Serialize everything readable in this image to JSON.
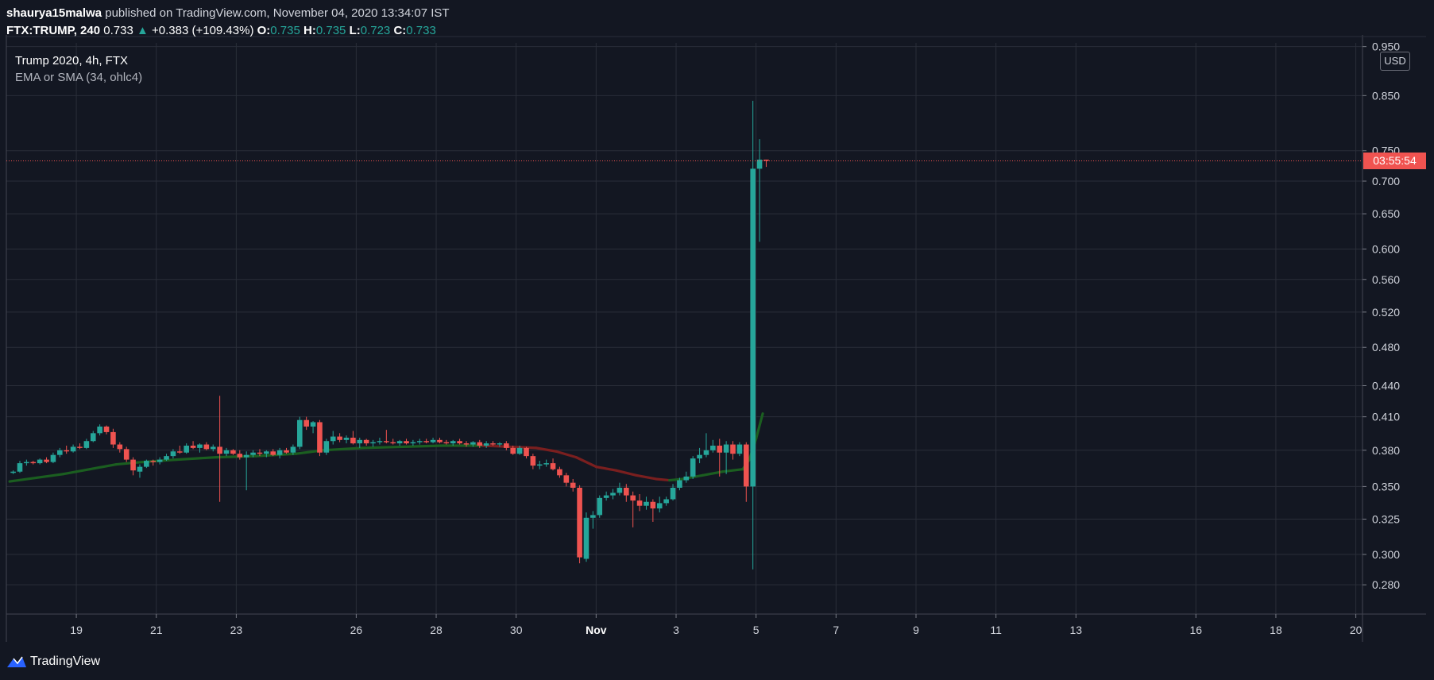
{
  "header": {
    "publisher": "shaurya15malwa",
    "publish_text": " published on TradingView.com, November 04, 2020 13:34:07 IST",
    "symbol": "FTX:TRUMP, 240",
    "last": "0.733",
    "change_arrow": "▲",
    "change": "+0.383 (+109.43%)",
    "o_label": "O:",
    "o_value": "0.735",
    "h_label": "H:",
    "h_value": "0.735",
    "l_label": "L:",
    "l_value": "0.723",
    "c_label": "C:",
    "c_value": "0.733"
  },
  "legend": {
    "line1": "Trump 2020, 4h, FTX",
    "line2": "EMA or SMA (34, ohlc4)"
  },
  "axis": {
    "currency": "USD",
    "countdown": "03:55:54"
  },
  "footer": {
    "brand": "TradingView",
    "logo_icon": "tradingview-logo-icon"
  },
  "colors": {
    "background": "#131722",
    "up": "#26a69a",
    "down": "#ef5350",
    "ma_up": "#1b5e20",
    "ma_down": "#7a1f1f",
    "grid": "#2a2e39",
    "text": "#d1d4dc"
  },
  "chart_data": {
    "type": "candlestick",
    "title": "Trump 2020, 4h, FTX",
    "symbol": "FTX:TRUMP",
    "interval": "240",
    "y_scale": "log",
    "ylim": [
      0.262,
      0.958
    ],
    "y_ticks": [
      0.95,
      0.85,
      0.75,
      0.7,
      0.65,
      0.6,
      0.56,
      0.52,
      0.48,
      0.44,
      0.41,
      0.38,
      0.35,
      0.325,
      0.3,
      0.28
    ],
    "y_tick_labels": [
      "0.950",
      "0.850",
      "0.750",
      "0.700",
      "0.650",
      "0.600",
      "0.560",
      "0.520",
      "0.480",
      "0.440",
      "0.410",
      "0.380",
      "0.350",
      "0.325",
      "0.300",
      "0.280"
    ],
    "x_ticks": [
      "2020-10-19",
      "2020-10-21",
      "2020-10-23",
      "2020-10-26",
      "2020-10-28",
      "2020-10-30",
      "2020-11-01",
      "2020-11-03",
      "2020-11-05",
      "2020-11-07",
      "2020-11-09",
      "2020-11-11",
      "2020-11-13",
      "2020-11-16",
      "2020-11-18",
      "2020-11-20"
    ],
    "x_tick_labels": [
      "19",
      "21",
      "23",
      "26",
      "28",
      "30",
      "Nov",
      "3",
      "5",
      "7",
      "9",
      "11",
      "13",
      "16",
      "18",
      "20"
    ],
    "x_range": [
      "2020-10-17 06:00",
      "2020-11-20 04:00"
    ],
    "last_price": 0.733,
    "grid": true,
    "series": [
      {
        "name": "FTX:TRUMP",
        "kind": "ohlc",
        "candles": [
          [
            "2020-10-17 08:00",
            0.361,
            0.363,
            0.36,
            0.362
          ],
          [
            "2020-10-17 12:00",
            0.362,
            0.371,
            0.361,
            0.369
          ],
          [
            "2020-10-17 16:00",
            0.369,
            0.372,
            0.367,
            0.37
          ],
          [
            "2020-10-17 20:00",
            0.37,
            0.371,
            0.368,
            0.369
          ],
          [
            "2020-10-18 00:00",
            0.369,
            0.373,
            0.368,
            0.372
          ],
          [
            "2020-10-18 04:00",
            0.372,
            0.374,
            0.369,
            0.37
          ],
          [
            "2020-10-18 08:00",
            0.37,
            0.378,
            0.369,
            0.376
          ],
          [
            "2020-10-18 12:00",
            0.376,
            0.382,
            0.374,
            0.38
          ],
          [
            "2020-10-18 16:00",
            0.38,
            0.384,
            0.377,
            0.379
          ],
          [
            "2020-10-18 20:00",
            0.379,
            0.385,
            0.378,
            0.383
          ],
          [
            "2020-10-19 00:00",
            0.383,
            0.386,
            0.381,
            0.382
          ],
          [
            "2020-10-19 04:00",
            0.382,
            0.39,
            0.381,
            0.388
          ],
          [
            "2020-10-19 08:00",
            0.388,
            0.397,
            0.387,
            0.395
          ],
          [
            "2020-10-19 12:00",
            0.395,
            0.403,
            0.393,
            0.401
          ],
          [
            "2020-10-19 16:00",
            0.401,
            0.402,
            0.394,
            0.396
          ],
          [
            "2020-10-19 20:00",
            0.396,
            0.399,
            0.382,
            0.385
          ],
          [
            "2020-10-20 00:00",
            0.385,
            0.387,
            0.378,
            0.381
          ],
          [
            "2020-10-20 04:00",
            0.381,
            0.383,
            0.37,
            0.372
          ],
          [
            "2020-10-20 08:00",
            0.372,
            0.374,
            0.359,
            0.363
          ],
          [
            "2020-10-20 12:00",
            0.362,
            0.368,
            0.357,
            0.366
          ],
          [
            "2020-10-20 16:00",
            0.366,
            0.372,
            0.365,
            0.371
          ],
          [
            "2020-10-20 20:00",
            0.371,
            0.372,
            0.367,
            0.37
          ],
          [
            "2020-10-21 00:00",
            0.37,
            0.374,
            0.368,
            0.372
          ],
          [
            "2020-10-21 04:00",
            0.372,
            0.377,
            0.371,
            0.375
          ],
          [
            "2020-10-21 08:00",
            0.375,
            0.381,
            0.373,
            0.379
          ],
          [
            "2020-10-21 12:00",
            0.379,
            0.384,
            0.377,
            0.378
          ],
          [
            "2020-10-21 16:00",
            0.378,
            0.386,
            0.377,
            0.384
          ],
          [
            "2020-10-21 20:00",
            0.384,
            0.388,
            0.381,
            0.382
          ],
          [
            "2020-10-22 00:00",
            0.382,
            0.386,
            0.378,
            0.385
          ],
          [
            "2020-10-22 04:00",
            0.385,
            0.387,
            0.38,
            0.381
          ],
          [
            "2020-10-22 08:00",
            0.381,
            0.385,
            0.379,
            0.383
          ],
          [
            "2020-10-22 12:00",
            0.383,
            0.43,
            0.338,
            0.377
          ],
          [
            "2020-10-22 16:00",
            0.377,
            0.382,
            0.375,
            0.38
          ],
          [
            "2020-10-22 20:00",
            0.38,
            0.381,
            0.376,
            0.377
          ],
          [
            "2020-10-23 00:00",
            0.377,
            0.38,
            0.372,
            0.374
          ],
          [
            "2020-10-23 04:00",
            0.374,
            0.379,
            0.347,
            0.376
          ],
          [
            "2020-10-23 08:00",
            0.376,
            0.38,
            0.374,
            0.378
          ],
          [
            "2020-10-23 12:00",
            0.378,
            0.381,
            0.375,
            0.377
          ],
          [
            "2020-10-23 16:00",
            0.377,
            0.38,
            0.374,
            0.379
          ],
          [
            "2020-10-23 20:00",
            0.379,
            0.381,
            0.375,
            0.376
          ],
          [
            "2020-10-24 00:00",
            0.376,
            0.382,
            0.373,
            0.38
          ],
          [
            "2020-10-24 04:00",
            0.38,
            0.382,
            0.377,
            0.378
          ],
          [
            "2020-10-24 08:00",
            0.378,
            0.385,
            0.376,
            0.383
          ],
          [
            "2020-10-24 12:00",
            0.383,
            0.41,
            0.381,
            0.407
          ],
          [
            "2020-10-24 16:00",
            0.407,
            0.41,
            0.398,
            0.401
          ],
          [
            "2020-10-24 20:00",
            0.401,
            0.406,
            0.395,
            0.405
          ],
          [
            "2020-10-25 00:00",
            0.405,
            0.407,
            0.375,
            0.378
          ],
          [
            "2020-10-25 04:00",
            0.378,
            0.39,
            0.376,
            0.388
          ],
          [
            "2020-10-25 08:00",
            0.388,
            0.397,
            0.385,
            0.392
          ],
          [
            "2020-10-25 12:00",
            0.392,
            0.395,
            0.387,
            0.389
          ],
          [
            "2020-10-25 16:00",
            0.389,
            0.393,
            0.386,
            0.391
          ],
          [
            "2020-10-25 20:00",
            0.391,
            0.397,
            0.385,
            0.386
          ],
          [
            "2020-10-26 00:00",
            0.386,
            0.391,
            0.382,
            0.389
          ],
          [
            "2020-10-26 04:00",
            0.389,
            0.39,
            0.384,
            0.386
          ],
          [
            "2020-10-26 08:00",
            0.386,
            0.389,
            0.383,
            0.387
          ],
          [
            "2020-10-26 12:00",
            0.387,
            0.391,
            0.385,
            0.388
          ],
          [
            "2020-10-26 16:00",
            0.388,
            0.398,
            0.386,
            0.387
          ],
          [
            "2020-10-26 20:00",
            0.387,
            0.39,
            0.385,
            0.386
          ],
          [
            "2020-10-27 00:00",
            0.386,
            0.389,
            0.384,
            0.388
          ],
          [
            "2020-10-27 04:00",
            0.388,
            0.39,
            0.385,
            0.386
          ],
          [
            "2020-10-27 08:00",
            0.386,
            0.389,
            0.384,
            0.387
          ],
          [
            "2020-10-27 12:00",
            0.387,
            0.39,
            0.385,
            0.388
          ],
          [
            "2020-10-27 16:00",
            0.388,
            0.39,
            0.386,
            0.387
          ],
          [
            "2020-10-27 20:00",
            0.387,
            0.391,
            0.386,
            0.389
          ],
          [
            "2020-10-28 00:00",
            0.389,
            0.391,
            0.386,
            0.387
          ],
          [
            "2020-10-28 04:00",
            0.387,
            0.389,
            0.385,
            0.386
          ],
          [
            "2020-10-28 08:00",
            0.386,
            0.389,
            0.384,
            0.388
          ],
          [
            "2020-10-28 12:00",
            0.388,
            0.39,
            0.385,
            0.386
          ],
          [
            "2020-10-28 16:00",
            0.386,
            0.388,
            0.383,
            0.385
          ],
          [
            "2020-10-28 20:00",
            0.385,
            0.388,
            0.383,
            0.387
          ],
          [
            "2020-10-29 00:00",
            0.387,
            0.389,
            0.382,
            0.384
          ],
          [
            "2020-10-29 04:00",
            0.384,
            0.388,
            0.382,
            0.386
          ],
          [
            "2020-10-29 08:00",
            0.386,
            0.388,
            0.384,
            0.385
          ],
          [
            "2020-10-29 12:00",
            0.385,
            0.387,
            0.383,
            0.386
          ],
          [
            "2020-10-29 16:00",
            0.386,
            0.388,
            0.38,
            0.382
          ],
          [
            "2020-10-29 20:00",
            0.382,
            0.384,
            0.376,
            0.377
          ],
          [
            "2020-10-30 00:00",
            0.377,
            0.384,
            0.376,
            0.382
          ],
          [
            "2020-10-30 04:00",
            0.382,
            0.383,
            0.373,
            0.375
          ],
          [
            "2020-10-30 08:00",
            0.375,
            0.377,
            0.364,
            0.367
          ],
          [
            "2020-10-30 12:00",
            0.367,
            0.371,
            0.364,
            0.368
          ],
          [
            "2020-10-30 16:00",
            0.368,
            0.372,
            0.366,
            0.369
          ],
          [
            "2020-10-30 20:00",
            0.369,
            0.373,
            0.363,
            0.364
          ],
          [
            "2020-10-31 00:00",
            0.364,
            0.366,
            0.357,
            0.359
          ],
          [
            "2020-10-31 04:00",
            0.359,
            0.361,
            0.35,
            0.353
          ],
          [
            "2020-10-31 08:00",
            0.353,
            0.356,
            0.346,
            0.349
          ],
          [
            "2020-10-31 12:00",
            0.349,
            0.351,
            0.294,
            0.298
          ],
          [
            "2020-10-31 16:00",
            0.297,
            0.33,
            0.295,
            0.326
          ],
          [
            "2020-10-31 20:00",
            0.326,
            0.331,
            0.318,
            0.328
          ],
          [
            "2020-11-01 00:00",
            0.328,
            0.343,
            0.326,
            0.341
          ],
          [
            "2020-11-01 04:00",
            0.341,
            0.346,
            0.339,
            0.343
          ],
          [
            "2020-11-01 08:00",
            0.343,
            0.348,
            0.34,
            0.345
          ],
          [
            "2020-11-01 12:00",
            0.345,
            0.353,
            0.343,
            0.349
          ],
          [
            "2020-11-01 16:00",
            0.349,
            0.352,
            0.338,
            0.343
          ],
          [
            "2020-11-01 20:00",
            0.343,
            0.346,
            0.319,
            0.339
          ],
          [
            "2020-11-02 00:00",
            0.339,
            0.344,
            0.331,
            0.335
          ],
          [
            "2020-11-02 04:00",
            0.335,
            0.342,
            0.332,
            0.338
          ],
          [
            "2020-11-02 08:00",
            0.338,
            0.34,
            0.323,
            0.333
          ],
          [
            "2020-11-02 12:00",
            0.333,
            0.342,
            0.33,
            0.337
          ],
          [
            "2020-11-02 16:00",
            0.337,
            0.342,
            0.335,
            0.34
          ],
          [
            "2020-11-02 20:00",
            0.34,
            0.352,
            0.339,
            0.349
          ],
          [
            "2020-11-03 00:00",
            0.349,
            0.357,
            0.347,
            0.355
          ],
          [
            "2020-11-03 04:00",
            0.355,
            0.362,
            0.353,
            0.358
          ],
          [
            "2020-11-03 08:00",
            0.358,
            0.375,
            0.356,
            0.373
          ],
          [
            "2020-11-03 12:00",
            0.373,
            0.382,
            0.369,
            0.376
          ],
          [
            "2020-11-03 16:00",
            0.376,
            0.395,
            0.374,
            0.38
          ],
          [
            "2020-11-03 20:00",
            0.38,
            0.389,
            0.378,
            0.384
          ],
          [
            "2020-11-04 00:00",
            0.384,
            0.39,
            0.358,
            0.378
          ],
          [
            "2020-11-04 04:00",
            0.378,
            0.388,
            0.36,
            0.385
          ],
          [
            "2020-11-04 08:00",
            0.385,
            0.388,
            0.372,
            0.377
          ],
          [
            "2020-11-04 12:00",
            0.377,
            0.387,
            0.375,
            0.385
          ],
          [
            "2020-11-04 16:00",
            0.385,
            0.387,
            0.338,
            0.35
          ],
          [
            "2020-11-04 20:00",
            0.35,
            0.84,
            0.29,
            0.72
          ],
          [
            "2020-11-05 00:00",
            0.72,
            0.77,
            0.61,
            0.735
          ],
          [
            "2020-11-05 04:00",
            0.735,
            0.735,
            0.723,
            0.733
          ]
        ]
      },
      {
        "name": "EMA or SMA (34, ohlc4)",
        "kind": "line",
        "points": [
          [
            "2020-10-17 08:00",
            0.354
          ],
          [
            "2020-10-18 00:00",
            0.357
          ],
          [
            "2020-10-18 16:00",
            0.36
          ],
          [
            "2020-10-19 08:00",
            0.364
          ],
          [
            "2020-10-20 00:00",
            0.368
          ],
          [
            "2020-10-20 16:00",
            0.37
          ],
          [
            "2020-10-21 12:00",
            0.372
          ],
          [
            "2020-10-22 12:00",
            0.374
          ],
          [
            "2020-10-23 12:00",
            0.375
          ],
          [
            "2020-10-24 12:00",
            0.377
          ],
          [
            "2020-10-25 04:00",
            0.38
          ],
          [
            "2020-10-26 04:00",
            0.382
          ],
          [
            "2020-10-27 04:00",
            0.383
          ],
          [
            "2020-10-28 04:00",
            0.384
          ],
          [
            "2020-10-29 04:00",
            0.384
          ],
          [
            "2020-10-29 20:00",
            0.383
          ],
          [
            "2020-10-30 12:00",
            0.382
          ],
          [
            "2020-10-31 00:00",
            0.379
          ],
          [
            "2020-10-31 12:00",
            0.374
          ],
          [
            "2020-11-01 00:00",
            0.366
          ],
          [
            "2020-11-01 12:00",
            0.363
          ],
          [
            "2020-11-02 00:00",
            0.359
          ],
          [
            "2020-11-02 12:00",
            0.356
          ],
          [
            "2020-11-02 20:00",
            0.355
          ],
          [
            "2020-11-03 04:00",
            0.356
          ],
          [
            "2020-11-03 16:00",
            0.359
          ],
          [
            "2020-11-04 04:00",
            0.362
          ],
          [
            "2020-11-04 16:00",
            0.364
          ],
          [
            "2020-11-04 20:00",
            0.372
          ],
          [
            "2020-11-05 00:00",
            0.39
          ],
          [
            "2020-11-05 04:00",
            0.413
          ]
        ]
      }
    ]
  }
}
